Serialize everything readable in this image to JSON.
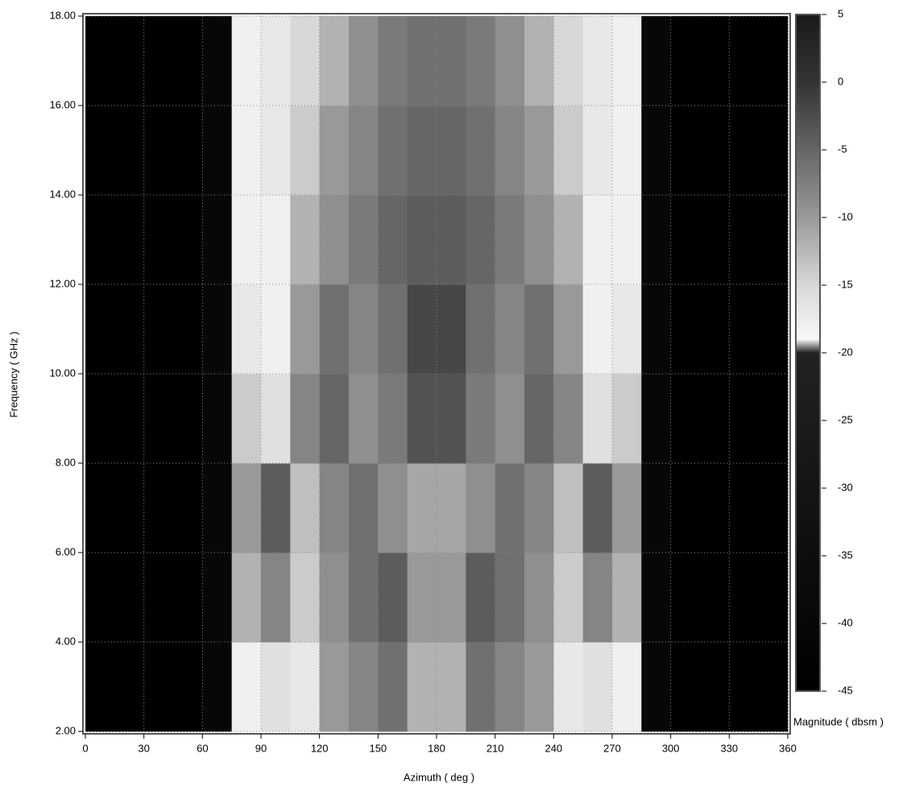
{
  "chart_data": {
    "type": "heatmap",
    "x_label": "Azimuth ( deg )",
    "y_label": "Frequency ( GHz )",
    "colorbar_label": "Magnitude ( dbsm )",
    "xbins": [
      0,
      15,
      30,
      45,
      60,
      75,
      90,
      105,
      120,
      135,
      150,
      165,
      180,
      195,
      210,
      225,
      240,
      255,
      270,
      285,
      300,
      315,
      330,
      345,
      360
    ],
    "ybins": [
      2,
      4,
      6,
      8,
      10,
      12,
      14,
      16,
      18
    ],
    "values": [
      [
        -45,
        -45,
        -45,
        -45,
        -40,
        -18,
        -16,
        -17,
        -10,
        -8,
        -6,
        -12,
        -12,
        -6,
        -8,
        -10,
        -17,
        -16,
        -18,
        -40,
        -45,
        -45,
        -45,
        -45
      ],
      [
        -45,
        -45,
        -45,
        -45,
        -40,
        -12,
        -8,
        -14,
        -9,
        -6,
        -4,
        -10,
        -10,
        -4,
        -6,
        -9,
        -14,
        -8,
        -12,
        -40,
        -45,
        -45,
        -45,
        -45
      ],
      [
        -45,
        -45,
        -45,
        -45,
        -40,
        -10,
        -4,
        -13,
        -8,
        -6,
        -9,
        -11,
        -11,
        -9,
        -6,
        -8,
        -13,
        -4,
        -10,
        -40,
        -45,
        -45,
        -45,
        -45
      ],
      [
        -45,
        -45,
        -45,
        -45,
        -40,
        -14,
        -16,
        -8,
        -5,
        -9,
        -7,
        -3,
        -3,
        -7,
        -9,
        -5,
        -8,
        -16,
        -14,
        -40,
        -45,
        -45,
        -45,
        -45
      ],
      [
        -45,
        -45,
        -45,
        -45,
        -40,
        -17,
        -18,
        -10,
        -6,
        -8,
        -6,
        -2,
        -2,
        -6,
        -8,
        -6,
        -10,
        -18,
        -17,
        -40,
        -45,
        -45,
        -45,
        -45
      ],
      [
        -45,
        -45,
        -45,
        -45,
        -40,
        -18,
        -18,
        -12,
        -9,
        -7,
        -5,
        -4,
        -4,
        -5,
        -7,
        -9,
        -12,
        -18,
        -18,
        -40,
        -45,
        -45,
        -45,
        -45
      ],
      [
        -45,
        -45,
        -45,
        -45,
        -40,
        -18,
        -17,
        -14,
        -10,
        -8,
        -6,
        -5,
        -5,
        -6,
        -8,
        -10,
        -14,
        -17,
        -18,
        -40,
        -45,
        -45,
        -45,
        -45
      ],
      [
        -45,
        -45,
        -45,
        -45,
        -40,
        -18,
        -17,
        -15,
        -12,
        -9,
        -7,
        -6,
        -6,
        -7,
        -9,
        -12,
        -15,
        -17,
        -18,
        -40,
        -45,
        -45,
        -45,
        -45
      ]
    ],
    "xlim": [
      0,
      360
    ],
    "xticks": [
      0,
      30,
      60,
      90,
      120,
      150,
      180,
      210,
      240,
      270,
      300,
      330,
      360
    ],
    "ylim": [
      2,
      18
    ],
    "yticks": [
      {
        "value": 2,
        "label": "2.00"
      },
      {
        "value": 4,
        "label": "4.00"
      },
      {
        "value": 6,
        "label": "6.00"
      },
      {
        "value": 8,
        "label": "8.00"
      },
      {
        "value": 10,
        "label": "10.00"
      },
      {
        "value": 12,
        "label": "12.00"
      },
      {
        "value": 14,
        "label": "14.00"
      },
      {
        "value": 16,
        "label": "16.00"
      },
      {
        "value": 18,
        "label": "18.00"
      }
    ],
    "zlim": [
      -45,
      5
    ],
    "zticks": [
      5,
      0,
      -5,
      -10,
      -15,
      -20,
      -25,
      -30,
      -35,
      -40,
      -45
    ],
    "colormap": [
      {
        "value": 5,
        "color": "#1a1a1a"
      },
      {
        "value": 0,
        "color": "#333333"
      },
      {
        "value": -5,
        "color": "#666666"
      },
      {
        "value": -10,
        "color": "#999999"
      },
      {
        "value": -15,
        "color": "#d8d8d8"
      },
      {
        "value": -19,
        "color": "#f8f8f8"
      },
      {
        "value": -20,
        "color": "#222222"
      },
      {
        "value": -45,
        "color": "#000000"
      }
    ],
    "grid": true
  }
}
